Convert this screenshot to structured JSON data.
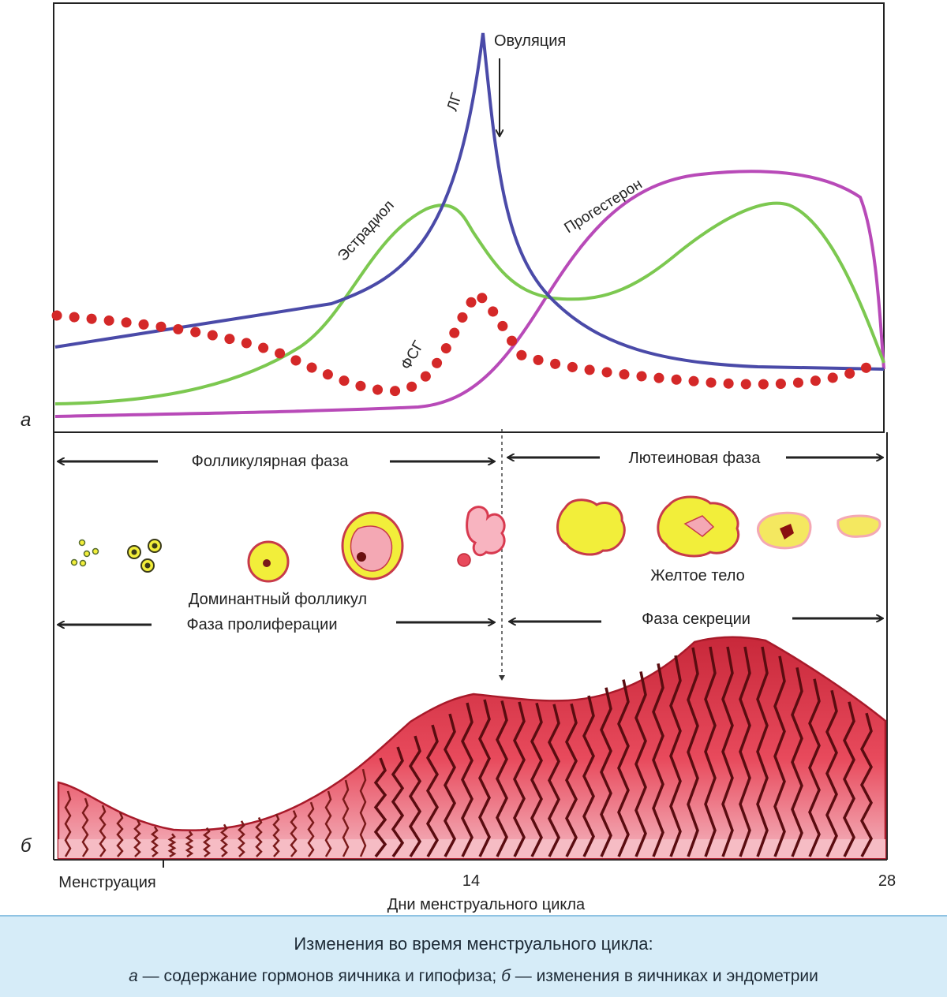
{
  "panel_a": {
    "letter": "а",
    "ovulation_label": "Овуляция",
    "lh_label": "ЛГ",
    "estradiol_label": "Эстрадиол",
    "progesterone_label": "Прогестерон",
    "fsh_label": "ФСГ"
  },
  "panel_b": {
    "letter": "б",
    "follicular_phase": "Фолликулярная фаза",
    "luteal_phase": "Лютеиновая фаза",
    "dominant_follicle": "Доминантный фолликул",
    "corpus_luteum": "Желтое тело",
    "proliferation_phase": "Фаза пролиферации",
    "secretion_phase": "Фаза секреции"
  },
  "x_axis": {
    "menstruation": "Менструация",
    "day14": "14",
    "day28": "28",
    "title": "Дни менструального цикла"
  },
  "caption": {
    "title": "Изменения во время менструального цикла:",
    "a_letter": "а",
    "a_text": " — содержание гормонов яичника и гипофиза; ",
    "b_letter": "б",
    "b_text": " — изменения в яичниках и эндометрии"
  },
  "colors": {
    "lh": "#4a4aa8",
    "estradiol": "#7cc850",
    "progesterone": "#b84ab8",
    "fsh": "#d42828",
    "follicle": "#f2ee3a",
    "endometrium": "#e03a48"
  },
  "icons": [
    "arrow-left-icon",
    "arrow-right-icon",
    "arrow-down-icon"
  ]
}
